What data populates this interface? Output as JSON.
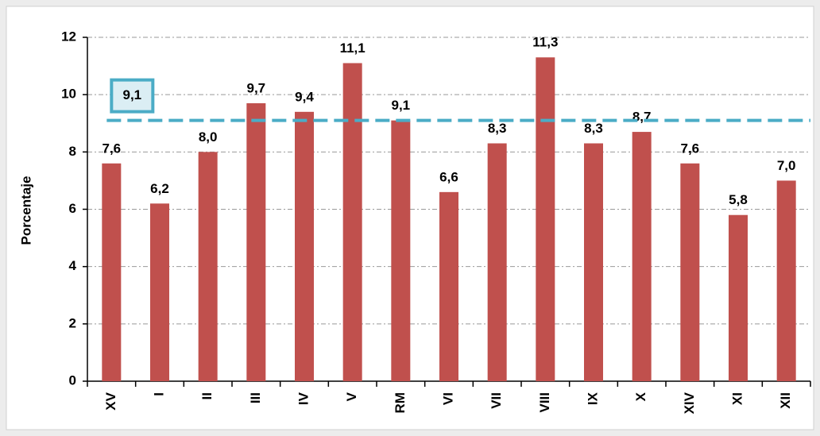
{
  "chart_data": {
    "type": "bar",
    "y_label": "Porcentaje",
    "categories": [
      "XV",
      "I",
      "II",
      "III",
      "IV",
      "V",
      "RM",
      "VI",
      "VII",
      "VIII",
      "IX",
      "X",
      "XIV",
      "XI",
      "XII"
    ],
    "values": [
      7.6,
      6.2,
      8.0,
      9.7,
      9.4,
      11.1,
      9.1,
      6.6,
      8.3,
      11.3,
      8.3,
      8.7,
      7.6,
      5.8,
      7.0
    ],
    "value_labels": [
      "7,6",
      "6,2",
      "8,0",
      "9,7",
      "9,4",
      "11,1",
      "9,1",
      "6,6",
      "8,3",
      "11,3",
      "8,3",
      "8,7",
      "7,6",
      "5,8",
      "7,0"
    ],
    "color": "#c0504d",
    "reference_line": {
      "value": 9.1,
      "label": "9,1",
      "color": "#4bacc6"
    },
    "ylim": [
      0,
      12
    ],
    "yticks": [
      0,
      2,
      4,
      6,
      8,
      10,
      12
    ],
    "grid": true
  }
}
